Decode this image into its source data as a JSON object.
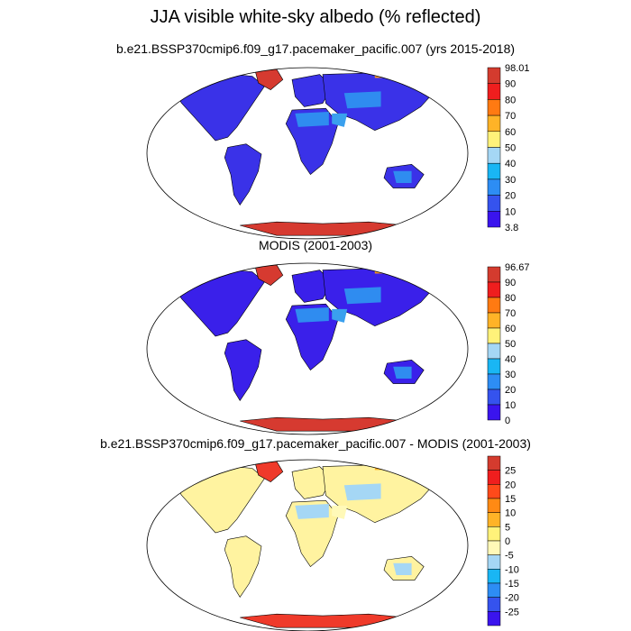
{
  "figure": {
    "title": "JJA visible white-sky albedo (% reflected)"
  },
  "panels": [
    {
      "id": "model",
      "title": "b.e21.BSSP370cmip6.f09_g17.pacemaker_pacific.007 (yrs 2015-2018)",
      "colorbar": {
        "labels": [
          "98.01",
          "90",
          "80",
          "70",
          "60",
          "50",
          "40",
          "30",
          "20",
          "10",
          "3.8"
        ],
        "colors": [
          "#d43b2e",
          "#ef1e1e",
          "#ff7a12",
          "#ffb327",
          "#fff27a",
          "#a5d7f5",
          "#19b6f4",
          "#2d8df4",
          "#3553ee",
          "#3a14ee"
        ]
      },
      "fields": {
        "ocean": "#ffffff",
        "land_main": "#3a32e8",
        "land_desert": "#2f8cf0",
        "land_light_desert": "#3aa0ee",
        "ice": "#d63a30",
        "ice_edge": "#ff9a22"
      }
    },
    {
      "id": "obs",
      "title": "MODIS (2001-2003)",
      "colorbar": {
        "labels": [
          "96.67",
          "90",
          "80",
          "70",
          "60",
          "50",
          "40",
          "30",
          "20",
          "10",
          "0"
        ],
        "colors": [
          "#d43b2e",
          "#ef1e1e",
          "#ff7a12",
          "#ffb327",
          "#fff27a",
          "#a5d7f5",
          "#19b6f4",
          "#2d8df4",
          "#3553ee",
          "#3a14ee"
        ]
      },
      "fields": {
        "ocean": "#ffffff",
        "land_main": "#3a20ea",
        "land_desert": "#2f8cf0",
        "land_light_desert": "#3aa0ee",
        "ice": "#d63a30",
        "ice_edge": "#ff9a22"
      }
    },
    {
      "id": "diff",
      "title": "b.e21.BSSP370cmip6.f09_g17.pacemaker_pacific.007 - MODIS (2001-2003)",
      "colorbar": {
        "labels": [
          "25",
          "20",
          "15",
          "10",
          "5",
          "0",
          "-5",
          "-10",
          "-15",
          "-20",
          "-25"
        ],
        "colors": [
          "#d43b2e",
          "#ef1e1e",
          "#ff4a1a",
          "#ff8a14",
          "#ffb327",
          "#fff27a",
          "#fff9b8",
          "#a5d7f5",
          "#19b6f4",
          "#2d8df4",
          "#3553ee",
          "#3a14ee"
        ]
      },
      "fields": {
        "ocean": "#ffffff",
        "land_main": "#fff3a0",
        "land_desert": "#a5d7f5",
        "land_light_desert": "#fff9b8",
        "ice": "#ef3a2a",
        "ice_edge": "#ffb327"
      }
    }
  ]
}
